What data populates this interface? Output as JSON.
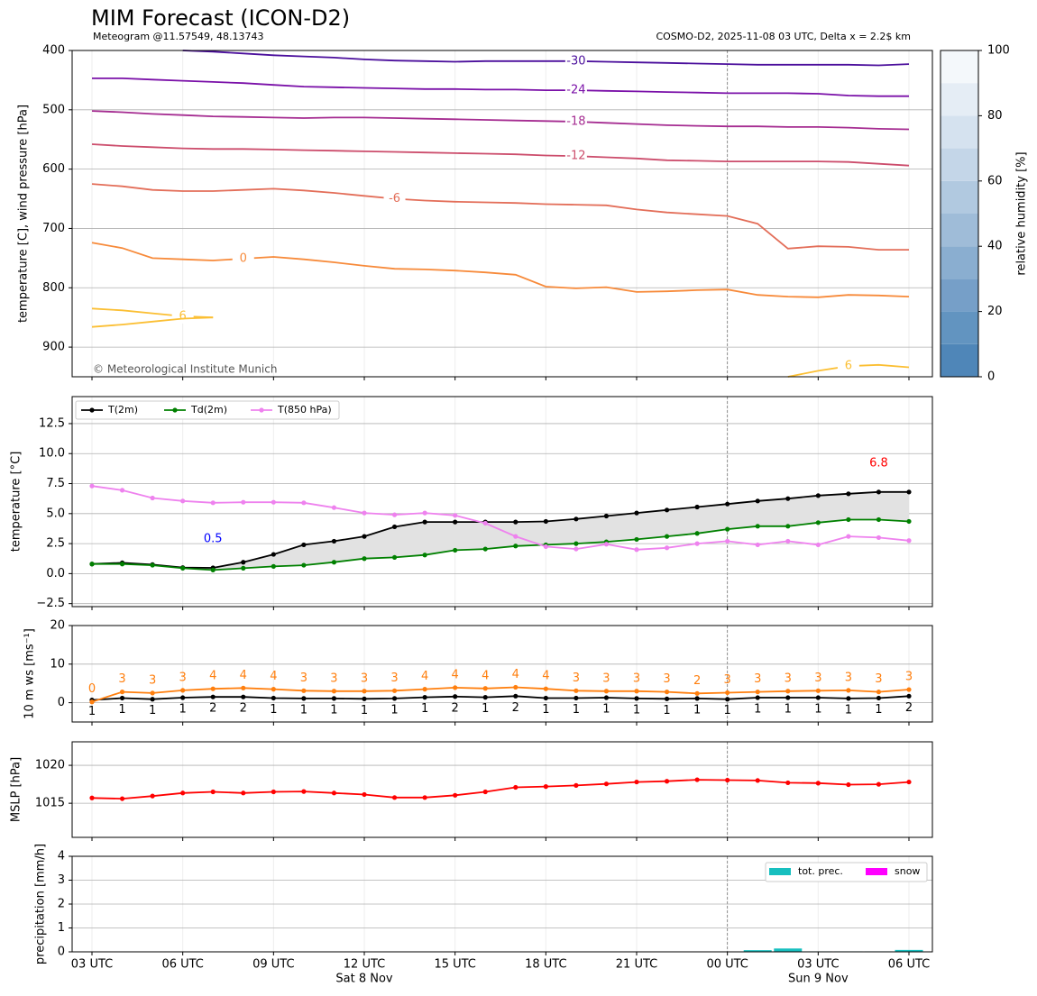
{
  "chart_data": [
    {
      "type": "contour",
      "title": "MIM Forecast (ICON-D2)",
      "subtitle": "Meteogram @11.57549, 48.13743",
      "info": "COSMO-D2, 2025-11-08 03 UTC, Delta x = 2.2$ km",
      "watermark": "© Meteorological Institute Munich",
      "ylabel": "temperature [C], wind pressure [hPa]",
      "ylim": [
        950,
        400
      ],
      "yticks": [
        400,
        500,
        600,
        700,
        800,
        900
      ],
      "grid": true,
      "series": [
        {
          "name": "-30",
          "color": "#4b0f9c",
          "values": [
            null,
            null,
            null,
            400,
            402,
            405,
            408,
            410,
            412,
            415,
            417,
            418,
            419,
            418,
            418,
            418,
            418,
            419,
            420,
            421,
            422,
            423,
            424,
            424,
            424,
            424,
            425,
            423
          ]
        },
        {
          "name": "-24",
          "color": "#7a10a8",
          "values": [
            447,
            447,
            449,
            451,
            453,
            455,
            458,
            461,
            462,
            463,
            464,
            465,
            465,
            466,
            466,
            467,
            467,
            468,
            469,
            470,
            471,
            472,
            472,
            472,
            473,
            476,
            477,
            477
          ]
        },
        {
          "name": "-18",
          "color": "#a52c91",
          "values": [
            502,
            504,
            507,
            509,
            511,
            512,
            513,
            514,
            513,
            513,
            514,
            515,
            516,
            517,
            518,
            519,
            520,
            522,
            524,
            526,
            527,
            528,
            528,
            529,
            529,
            530,
            532,
            533
          ]
        },
        {
          "name": "-12",
          "color": "#cc4d6c",
          "values": [
            558,
            561,
            563,
            565,
            566,
            566,
            567,
            568,
            569,
            570,
            571,
            572,
            573,
            574,
            575,
            577,
            578,
            580,
            582,
            585,
            586,
            587,
            587,
            587,
            587,
            588,
            591,
            594
          ]
        },
        {
          "name": "-6",
          "color": "#e36e59",
          "values": [
            625,
            629,
            635,
            637,
            637,
            635,
            633,
            636,
            640,
            645,
            650,
            653,
            655,
            656,
            657,
            659,
            660,
            661,
            668,
            673,
            676,
            679,
            692,
            734,
            730,
            731,
            736,
            736
          ]
        },
        {
          "name": "0",
          "color": "#f78a3a",
          "values": [
            724,
            733,
            750,
            752,
            754,
            751,
            748,
            752,
            757,
            763,
            768,
            769,
            771,
            774,
            778,
            798,
            801,
            799,
            807,
            806,
            804,
            803,
            812,
            815,
            816,
            812,
            813,
            815
          ]
        },
        {
          "name": "6",
          "color": "#fbbf34",
          "values": [
            835,
            838,
            843,
            848,
            850,
            null,
            null,
            null,
            null,
            null,
            null,
            null,
            null,
            null,
            null,
            null,
            null,
            null,
            null,
            null,
            null,
            null,
            null,
            950,
            940,
            932,
            930,
            934
          ]
        },
        {
          "color": "#fbbf34",
          "values": [
            866,
            862,
            857,
            852,
            850,
            null,
            null,
            null,
            null,
            null,
            null,
            null,
            null,
            null,
            null,
            null,
            null,
            null,
            null,
            null,
            null,
            null,
            null,
            null,
            null,
            null,
            null,
            null
          ]
        }
      ],
      "colorbar": {
        "label": "relative humidity [%]",
        "levels": [
          0,
          10,
          20,
          30,
          40,
          50,
          60,
          70,
          80,
          90,
          100
        ],
        "ticks": [
          0,
          20,
          40,
          60,
          80,
          100
        ],
        "colors": [
          "#4f86b8",
          "#6294c0",
          "#769fc8",
          "#8aaed0",
          "#9fbcd8",
          "#b1c9e0",
          "#c4d6e8",
          "#d5e2ef",
          "#e5edf5",
          "#f4f8fb"
        ]
      }
    },
    {
      "type": "line",
      "ylabel": "temperature [°C]",
      "ylim": [
        -2.75,
        14.75
      ],
      "yticks": [
        {
          "value": -2.5,
          "label": "−2.5"
        },
        {
          "value": 0,
          "label": "0.0"
        },
        {
          "value": 2.5,
          "label": "2.5"
        },
        {
          "value": 5,
          "label": "5.0"
        },
        {
          "value": 7.5,
          "label": "7.5"
        },
        {
          "value": 10,
          "label": "10.0"
        },
        {
          "value": 12.5,
          "label": "12.5"
        }
      ],
      "grid": true,
      "markers": true,
      "legend": "upper left",
      "fill_between_color": "#e2e2e2",
      "series": [
        {
          "name": "T(2m)",
          "color": "#000000",
          "values": [
            0.8,
            0.9,
            0.75,
            0.5,
            0.48,
            0.95,
            1.6,
            2.4,
            2.7,
            3.1,
            3.9,
            4.3,
            4.3,
            4.3,
            4.3,
            4.35,
            4.55,
            4.8,
            5.05,
            5.3,
            5.55,
            5.8,
            6.05,
            6.25,
            6.5,
            6.65,
            6.8,
            6.8
          ]
        },
        {
          "name": "Td(2m)",
          "color": "#008000",
          "values": [
            0.8,
            0.8,
            0.7,
            0.45,
            0.3,
            0.45,
            0.6,
            0.7,
            0.95,
            1.25,
            1.35,
            1.55,
            1.95,
            2.05,
            2.3,
            2.4,
            2.5,
            2.65,
            2.85,
            3.1,
            3.35,
            3.7,
            3.95,
            3.95,
            4.25,
            4.5,
            4.5,
            4.35
          ]
        },
        {
          "name": "T(850 hPa)",
          "color": "#ee82ee",
          "values": [
            7.3,
            6.95,
            6.3,
            6.05,
            5.9,
            5.95,
            5.95,
            5.9,
            5.5,
            5.05,
            4.9,
            5.05,
            4.85,
            4.2,
            3.1,
            2.25,
            2.05,
            2.45,
            2.0,
            2.15,
            2.5,
            2.7,
            2.4,
            2.7,
            2.4,
            3.1,
            3.0,
            2.75
          ]
        }
      ],
      "annotations": [
        {
          "text": "0.5",
          "color": "#0000ff"
        },
        {
          "text": "6.8",
          "color": "#ff0000"
        }
      ]
    },
    {
      "type": "line",
      "ylabel": "10 m ws [ms⁻¹]",
      "ylim": [
        -5,
        20
      ],
      "yticks": [
        0,
        10,
        20
      ],
      "grid": true,
      "markers": true,
      "series": [
        {
          "color": "#000000",
          "values": [
            0.7,
            1.2,
            0.9,
            1.3,
            1.5,
            1.5,
            1.2,
            1.1,
            1.1,
            1.0,
            1.1,
            1.4,
            1.6,
            1.4,
            1.7,
            1.2,
            1.2,
            1.3,
            1.1,
            1.0,
            1.1,
            0.9,
            1.3,
            1.3,
            1.3,
            1.1,
            1.2,
            1.7
          ],
          "value_labels": [
            "1",
            "1",
            "1",
            "1",
            "2",
            "2",
            "1",
            "1",
            "1",
            "1",
            "1",
            "1",
            "2",
            "1",
            "2",
            "1",
            "1",
            "1",
            "1",
            "1",
            "1",
            "1",
            "1",
            "1",
            "1",
            "1",
            "1",
            "2"
          ]
        },
        {
          "color": "#ff7f0e",
          "values": [
            0.2,
            2.8,
            2.5,
            3.2,
            3.6,
            3.8,
            3.5,
            3.1,
            3.0,
            3.0,
            3.1,
            3.5,
            3.9,
            3.7,
            4.0,
            3.6,
            3.1,
            3.0,
            3.0,
            2.8,
            2.4,
            2.6,
            2.8,
            3.0,
            3.1,
            3.2,
            2.8,
            3.4
          ],
          "value_labels": [
            "0",
            "3",
            "3",
            "3",
            "4",
            "4",
            "4",
            "3",
            "3",
            "3",
            "3",
            "4",
            "4",
            "4",
            "4",
            "4",
            "3",
            "3",
            "3",
            "3",
            "2",
            "3",
            "3",
            "3",
            "3",
            "3",
            "3",
            "3"
          ]
        }
      ]
    },
    {
      "type": "line",
      "ylabel": "MSLP [hPa]",
      "ylim": [
        1010.5,
        1023.1
      ],
      "yticks": [
        1015,
        1020
      ],
      "grid": true,
      "markers": true,
      "series": [
        {
          "color": "#ff0000",
          "values": [
            1015.7,
            1015.6,
            1015.95,
            1016.35,
            1016.5,
            1016.35,
            1016.5,
            1016.55,
            1016.35,
            1016.15,
            1015.75,
            1015.75,
            1016.05,
            1016.5,
            1017.1,
            1017.2,
            1017.35,
            1017.55,
            1017.8,
            1017.9,
            1018.1,
            1018.05,
            1018.0,
            1017.7,
            1017.65,
            1017.45,
            1017.5,
            1017.8
          ]
        }
      ]
    },
    {
      "type": "bar",
      "ylabel": "precipitation [mm/h]",
      "ylim": [
        0,
        4
      ],
      "yticks": [
        0,
        1,
        2,
        3,
        4
      ],
      "grid": true,
      "legend": "upper right",
      "categories": [
        "03 UTC",
        null,
        null,
        "06 UTC",
        null,
        null,
        "09 UTC",
        null,
        null,
        "12 UTC",
        null,
        null,
        "15 UTC",
        null,
        null,
        "18 UTC",
        null,
        null,
        "21 UTC",
        null,
        null,
        "00 UTC",
        null,
        null,
        "03 UTC",
        null,
        null,
        "06 UTC"
      ],
      "day_labels": [
        "Sat 8 Nov",
        "Sun 9 Nov"
      ],
      "series": [
        {
          "name": "tot. prec.",
          "color": "#17bfbf",
          "values": [
            0,
            0.01,
            0.01,
            0.01,
            0.01,
            0,
            0.01,
            0,
            0,
            0,
            0,
            0.01,
            0,
            0,
            0,
            0,
            0,
            0,
            0,
            0,
            0,
            0,
            0.07,
            0.14,
            0.02,
            0.02,
            0.02,
            0.08
          ]
        },
        {
          "name": "snow",
          "color": "#ff00ff",
          "values": [
            0,
            0,
            0,
            0,
            0,
            0,
            0,
            0,
            0,
            0,
            0,
            0,
            0,
            0,
            0,
            0,
            0,
            0,
            0,
            0,
            0,
            0,
            0,
            0,
            0,
            0,
            0,
            0
          ]
        }
      ]
    }
  ]
}
